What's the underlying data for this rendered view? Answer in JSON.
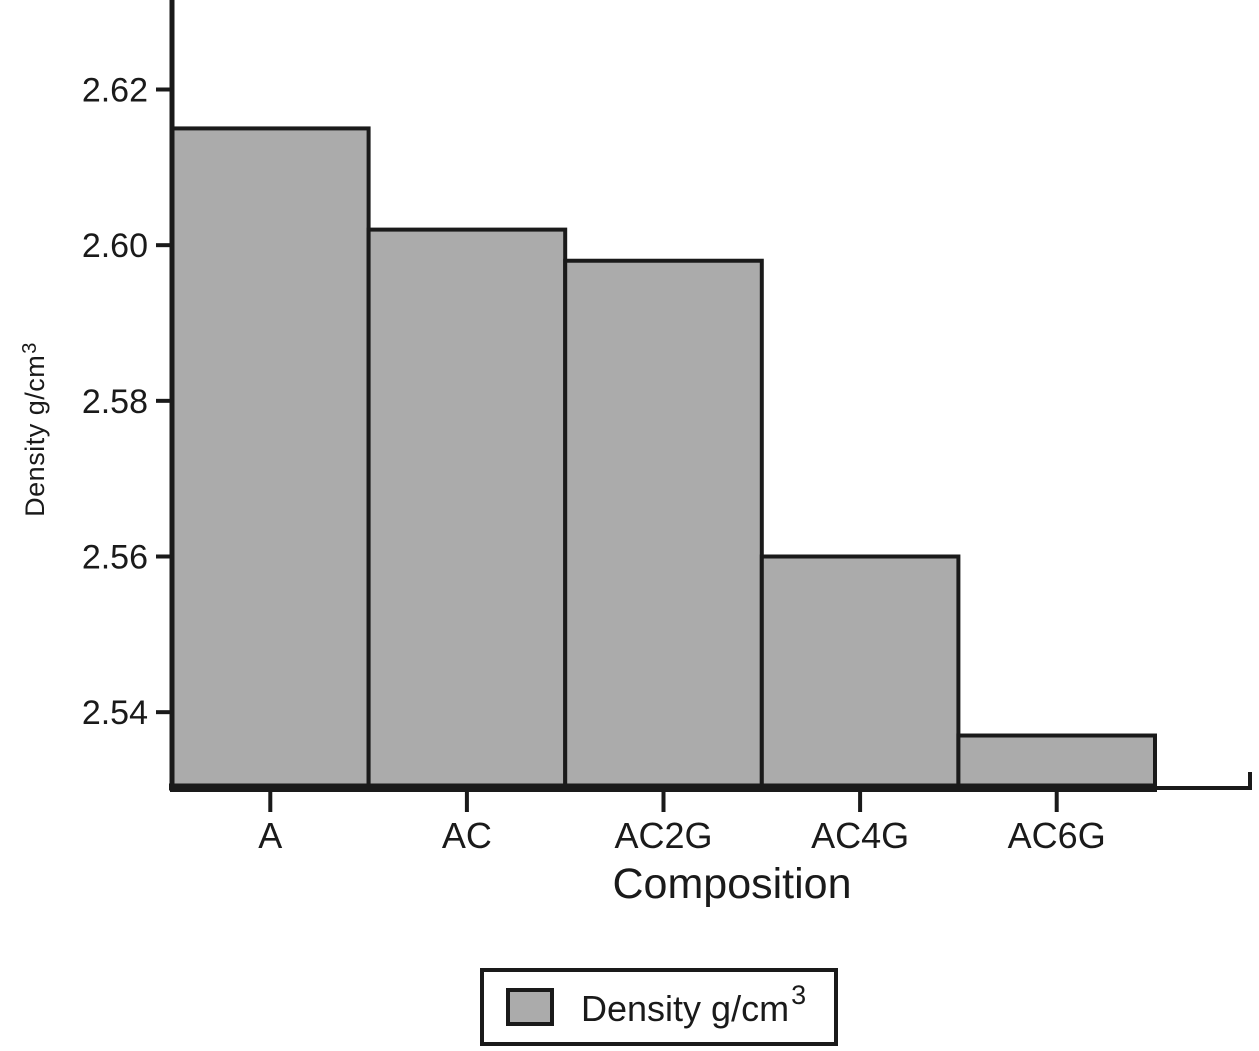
{
  "chart_data": {
    "type": "bar",
    "title": "",
    "categories": [
      "A",
      "AC",
      "AC2G",
      "AC4G",
      "AC6G"
    ],
    "values": [
      2.615,
      2.602,
      2.598,
      2.56,
      2.537
    ],
    "series": [
      {
        "name": "Density g/cm3",
        "values": [
          2.615,
          2.602,
          2.598,
          2.56,
          2.537
        ]
      }
    ],
    "xlabel": "Composition",
    "ylabel": "Density g/cm3",
    "ylabel_parts": {
      "text": "Density g/cm",
      "sup": "3"
    },
    "yticks": [
      2.54,
      2.56,
      2.58,
      2.6,
      2.62
    ],
    "ytick_labels": [
      "2.54",
      "2.56",
      "2.58",
      "2.60",
      "2.62"
    ],
    "ylim": [
      2.53,
      2.6315
    ],
    "grid": false,
    "legend": {
      "position": "bottom-center",
      "entries": [
        {
          "label": "Density g/cm",
          "sup": "3",
          "swatch_color": "#ababab"
        }
      ]
    },
    "colors": {
      "bar_fill": "#ababab",
      "stroke": "#1a1a1a",
      "background": "#ffffff"
    }
  }
}
